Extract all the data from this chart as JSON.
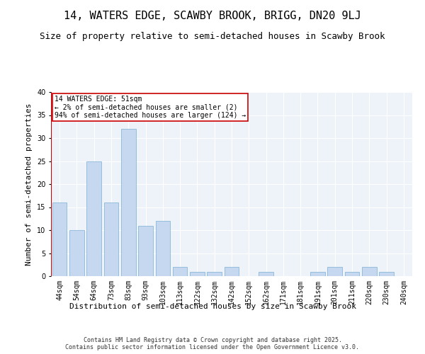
{
  "title": "14, WATERS EDGE, SCAWBY BROOK, BRIGG, DN20 9LJ",
  "subtitle": "Size of property relative to semi-detached houses in Scawby Brook",
  "xlabel": "Distribution of semi-detached houses by size in Scawby Brook",
  "ylabel": "Number of semi-detached properties",
  "categories": [
    "44sqm",
    "54sqm",
    "64sqm",
    "73sqm",
    "83sqm",
    "93sqm",
    "103sqm",
    "113sqm",
    "122sqm",
    "132sqm",
    "142sqm",
    "152sqm",
    "162sqm",
    "171sqm",
    "181sqm",
    "191sqm",
    "201sqm",
    "211sqm",
    "220sqm",
    "230sqm",
    "240sqm"
  ],
  "values": [
    16,
    10,
    25,
    16,
    32,
    11,
    12,
    2,
    1,
    1,
    2,
    0,
    1,
    0,
    0,
    1,
    2,
    1,
    2,
    1,
    0
  ],
  "bar_color": "#c5d8f0",
  "bar_edgecolor": "#7aafd4",
  "highlight_color": "#cc0000",
  "annotation_text": "14 WATERS EDGE: 51sqm\n← 2% of semi-detached houses are smaller (2)\n94% of semi-detached houses are larger (124) →",
  "annotation_box_color": "#cc0000",
  "ylim": [
    0,
    40
  ],
  "yticks": [
    0,
    5,
    10,
    15,
    20,
    25,
    30,
    35,
    40
  ],
  "background_color": "#eef3f9",
  "footer": "Contains HM Land Registry data © Crown copyright and database right 2025.\nContains public sector information licensed under the Open Government Licence v3.0.",
  "title_fontsize": 11,
  "subtitle_fontsize": 9,
  "tick_fontsize": 7,
  "ylabel_fontsize": 8,
  "xlabel_fontsize": 8,
  "footer_fontsize": 6
}
